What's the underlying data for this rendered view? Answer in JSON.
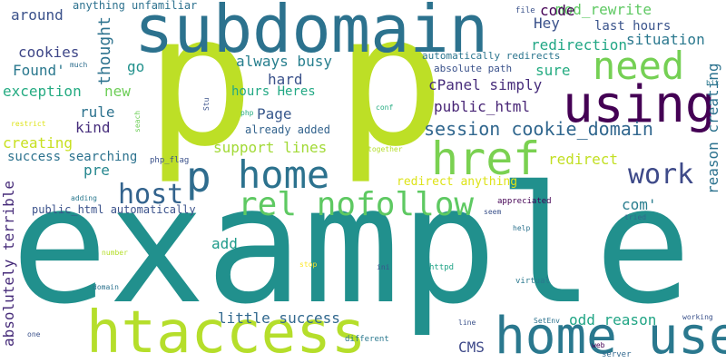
{
  "word_cloud": {
    "words": [
      {
        "text": "example",
        "color": "#21908d"
      },
      {
        "text": "p",
        "color": "#bddf26"
      },
      {
        "text": "p",
        "color": "#bddf26"
      },
      {
        "text": "subdomain",
        "color": "#2c728e"
      },
      {
        "text": "htaccess",
        "color": "#b5de2b"
      },
      {
        "text": "home user",
        "color": "#2a788e"
      },
      {
        "text": "using",
        "color": "#440154"
      },
      {
        "text": "href",
        "color": "#7ad151"
      },
      {
        "text": "need",
        "color": "#75d054"
      },
      {
        "text": "home",
        "color": "#2c728e"
      },
      {
        "text": "p",
        "color": "#2f6c8e"
      },
      {
        "text": "rel nofollow",
        "color": "#5ec962"
      },
      {
        "text": "host",
        "color": "#33638d"
      },
      {
        "text": "work",
        "color": "#3e4a89"
      },
      {
        "text": "session cookie_domain",
        "color": "#31678e"
      },
      {
        "text": "cPanel simply",
        "color": "#472d7b"
      },
      {
        "text": "reason creating",
        "color": "#2c728e"
      },
      {
        "text": "absolutely terrible",
        "color": "#472c7a"
      },
      {
        "text": "always busy",
        "color": "#277f8e"
      },
      {
        "text": "public_html",
        "color": "#482576"
      },
      {
        "text": "redirection",
        "color": "#22a785"
      },
      {
        "text": "situation",
        "color": "#2a788e"
      },
      {
        "text": "mod_rewrite",
        "color": "#5ec962"
      },
      {
        "text": "code",
        "color": "#440154"
      },
      {
        "text": "Hey",
        "color": "#3b528b"
      },
      {
        "text": "last hours",
        "color": "#3a548c"
      },
      {
        "text": "around",
        "color": "#3b528b"
      },
      {
        "text": "cookies",
        "color": "#3f4788"
      },
      {
        "text": "Found'",
        "color": "#2a788e"
      },
      {
        "text": "thought",
        "color": "#2c728e"
      },
      {
        "text": "go",
        "color": "#21918c"
      },
      {
        "text": "exception",
        "color": "#25ab82"
      },
      {
        "text": "new",
        "color": "#6ece58"
      },
      {
        "text": "hard",
        "color": "#3b528b"
      },
      {
        "text": "hours Heres",
        "color": "#22a884"
      },
      {
        "text": "Page",
        "color": "#38588c"
      },
      {
        "text": "rule",
        "color": "#2c728e"
      },
      {
        "text": "kind",
        "color": "#472f7d"
      },
      {
        "text": "creating",
        "color": "#c8e020"
      },
      {
        "text": "support lines",
        "color": "#a2da37"
      },
      {
        "text": "already added",
        "color": "#33638d"
      },
      {
        "text": "redirect",
        "color": "#c2df23"
      },
      {
        "text": "success searching",
        "color": "#2c728e"
      },
      {
        "text": "pre",
        "color": "#24868e"
      },
      {
        "text": "com'",
        "color": "#287d8e"
      },
      {
        "text": "redirect anything",
        "color": "#dde318"
      },
      {
        "text": "public_html automatically",
        "color": "#3b528b"
      },
      {
        "text": "add",
        "color": "#1e9b8a"
      },
      {
        "text": "little success",
        "color": "#31688e"
      },
      {
        "text": "odd reason",
        "color": "#21a585"
      },
      {
        "text": "CMS",
        "color": "#3e4989"
      },
      {
        "text": "anything unfamiliar",
        "color": "#2c718e"
      },
      {
        "text": "automatically redirects",
        "color": "#2b758e"
      },
      {
        "text": "absolute path",
        "color": "#3b528b"
      },
      {
        "text": "sure",
        "color": "#25ac82"
      },
      {
        "text": "file",
        "color": "#3b528b"
      },
      {
        "text": "much",
        "color": "#2e6e8e"
      },
      {
        "text": "Stu",
        "color": "#3b528b"
      },
      {
        "text": "php",
        "color": "#26ad81"
      },
      {
        "text": "conf",
        "color": "#25ac82"
      },
      {
        "text": "bit",
        "color": "#2a788e"
      },
      {
        "text": "restrict",
        "color": "#dde318"
      },
      {
        "text": "seach",
        "color": "#6ece58"
      },
      {
        "text": "together",
        "color": "#b5de2b"
      },
      {
        "text": "php_flag",
        "color": "#3b528b"
      },
      {
        "text": "adding",
        "color": "#2a788e"
      },
      {
        "text": "appreciated",
        "color": "#440154"
      },
      {
        "text": "seem",
        "color": "#3b528b"
      },
      {
        "text": "tried",
        "color": "#31688e"
      },
      {
        "text": "help",
        "color": "#2c728e"
      },
      {
        "text": "number",
        "color": "#b5de2b"
      },
      {
        "text": "stop",
        "color": "#fde725"
      },
      {
        "text": "ini",
        "color": "#3b528b"
      },
      {
        "text": "httpd",
        "color": "#20a386"
      },
      {
        "text": "domain",
        "color": "#2c728e"
      },
      {
        "text": "virtual",
        "color": "#2a788e"
      },
      {
        "text": "one",
        "color": "#3b528b"
      },
      {
        "text": "line",
        "color": "#3b528b"
      },
      {
        "text": "SetEnv",
        "color": "#2c728e"
      },
      {
        "text": "working",
        "color": "#3b528b"
      },
      {
        "text": "different",
        "color": "#2a788e"
      },
      {
        "text": "web",
        "color": "#440154"
      },
      {
        "text": "server",
        "color": "#31688e"
      }
    ]
  }
}
